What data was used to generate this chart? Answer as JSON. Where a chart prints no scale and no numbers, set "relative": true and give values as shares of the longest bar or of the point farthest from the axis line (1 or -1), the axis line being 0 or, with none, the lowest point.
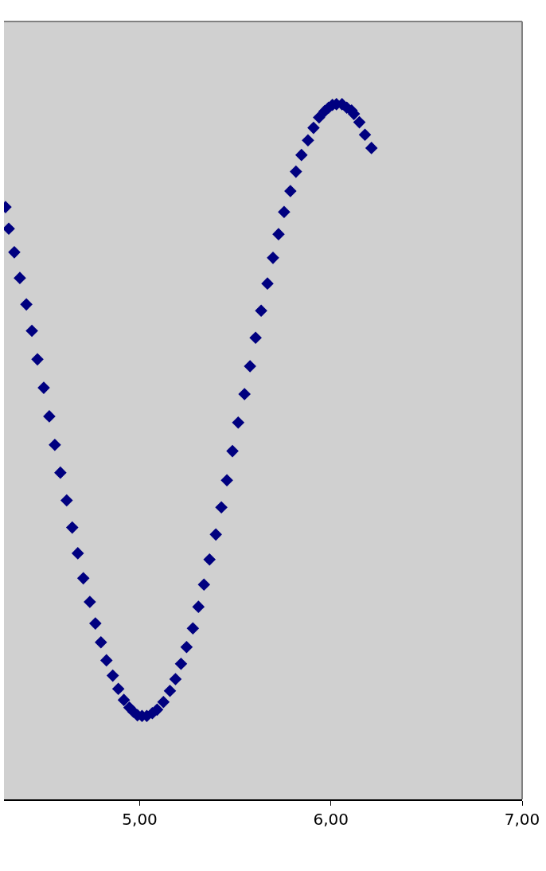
{
  "chart_data": {
    "type": "scatter",
    "relative": true,
    "marker": "diamond",
    "grid": false,
    "tick_labels": "x",
    "xlim": [
      4.29,
      7.0
    ],
    "xticks": [
      {
        "value": 5,
        "label": "5,00"
      },
      {
        "value": 6,
        "label": "6,00"
      },
      {
        "value": 7,
        "label": "7,00"
      }
    ],
    "x": [
      4.298,
      4.315,
      4.344,
      4.373,
      4.407,
      4.436,
      4.465,
      4.498,
      4.527,
      4.556,
      4.585,
      4.618,
      4.647,
      4.676,
      4.705,
      4.739,
      4.768,
      4.797,
      4.826,
      4.859,
      4.888,
      4.917,
      4.946,
      4.967,
      4.988,
      5.012,
      5.037,
      5.066,
      5.091,
      5.124,
      5.158,
      5.187,
      5.216,
      5.245,
      5.278,
      5.307,
      5.336,
      5.365,
      5.398,
      5.427,
      5.456,
      5.485,
      5.515,
      5.548,
      5.577,
      5.606,
      5.635,
      5.668,
      5.697,
      5.726,
      5.755,
      5.788,
      5.817,
      5.846,
      5.88,
      5.909,
      5.938,
      5.967,
      5.988,
      6.008,
      6.029,
      6.058,
      6.083,
      6.108,
      6.12,
      6.149,
      6.178,
      6.212
    ],
    "series": [
      {
        "color": "#000080",
        "values": [
          0.852,
          0.821,
          0.787,
          0.75,
          0.712,
          0.674,
          0.633,
          0.592,
          0.551,
          0.51,
          0.47,
          0.43,
          0.391,
          0.354,
          0.318,
          0.284,
          0.253,
          0.226,
          0.2,
          0.178,
          0.159,
          0.143,
          0.132,
          0.126,
          0.121,
          0.12,
          0.12,
          0.124,
          0.129,
          0.14,
          0.156,
          0.173,
          0.195,
          0.219,
          0.246,
          0.277,
          0.309,
          0.345,
          0.381,
          0.42,
          0.459,
          0.501,
          0.542,
          0.583,
          0.623,
          0.664,
          0.703,
          0.742,
          0.779,
          0.813,
          0.845,
          0.875,
          0.903,
          0.927,
          0.948,
          0.966,
          0.981,
          0.99,
          0.995,
          0.999,
          1,
          1,
          0.995,
          0.991,
          0.986,
          0.974,
          0.956,
          0.937
        ]
      }
    ]
  }
}
